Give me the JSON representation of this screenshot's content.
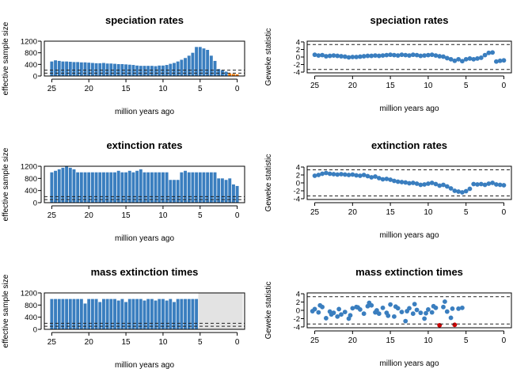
{
  "chart_data": [
    {
      "id": "ess-speciation",
      "type": "bar",
      "title": "speciation rates",
      "xlabel": "million years ago",
      "ylabel": "effective sample size",
      "xlim": [
        26,
        -1
      ],
      "ylim": [
        0,
        1200
      ],
      "xticks": [
        "25",
        "20",
        "15",
        "10",
        "5",
        "0"
      ],
      "yticks": [
        "0",
        "400",
        "800",
        "1200"
      ],
      "hlines": [
        100,
        200
      ],
      "bar_color": "#3a7ebf",
      "highlight_color": "#ff7f0e",
      "shade": null,
      "x": [
        25.0,
        24.5,
        24.0,
        23.5,
        23.0,
        22.5,
        22.0,
        21.5,
        21.0,
        20.5,
        20.0,
        19.5,
        19.0,
        18.5,
        18.0,
        17.5,
        17.0,
        16.5,
        16.0,
        15.5,
        15.0,
        14.5,
        14.0,
        13.5,
        13.0,
        12.5,
        12.0,
        11.5,
        11.0,
        10.5,
        10.0,
        9.5,
        9.0,
        8.5,
        8.0,
        7.5,
        7.0,
        6.5,
        6.0,
        5.5,
        5.0,
        4.5,
        4.0,
        3.5,
        3.0,
        2.5,
        2.0,
        1.5,
        1.0,
        0.5,
        0.0
      ],
      "values": [
        500,
        540,
        520,
        500,
        500,
        490,
        480,
        480,
        470,
        470,
        460,
        450,
        440,
        440,
        450,
        430,
        430,
        420,
        410,
        410,
        400,
        390,
        380,
        360,
        350,
        350,
        350,
        350,
        340,
        360,
        360,
        380,
        420,
        450,
        500,
        560,
        620,
        700,
        800,
        1000,
        1000,
        950,
        900,
        700,
        520,
        240,
        200,
        150,
        90,
        70,
        60
      ],
      "highlight": [
        false,
        false,
        false,
        false,
        false,
        false,
        false,
        false,
        false,
        false,
        false,
        false,
        false,
        false,
        false,
        false,
        false,
        false,
        false,
        false,
        false,
        false,
        false,
        false,
        false,
        false,
        false,
        false,
        false,
        false,
        false,
        false,
        false,
        false,
        false,
        false,
        false,
        false,
        false,
        false,
        false,
        false,
        false,
        false,
        false,
        false,
        false,
        false,
        true,
        true,
        true
      ]
    },
    {
      "id": "geweke-speciation",
      "type": "scatter",
      "title": "speciation rates",
      "xlabel": "million years ago",
      "ylabel": "Geweke statistic",
      "xlim": [
        26,
        -1
      ],
      "ylim": [
        -4.2,
        4.2
      ],
      "xticks": [
        "25",
        "20",
        "15",
        "10",
        "5",
        "0"
      ],
      "yticks": [
        "-4",
        "-2",
        "0",
        "2",
        "4"
      ],
      "hlines": [
        -3.3,
        3.3
      ],
      "point_color": "#3a7ebf",
      "highlight_color": "#cc0000",
      "x": [
        25.0,
        24.5,
        24.0,
        23.5,
        23.0,
        22.5,
        22.0,
        21.5,
        21.0,
        20.5,
        20.0,
        19.5,
        19.0,
        18.5,
        18.0,
        17.5,
        17.0,
        16.5,
        16.0,
        15.5,
        15.0,
        14.5,
        14.0,
        13.5,
        13.0,
        12.5,
        12.0,
        11.5,
        11.0,
        10.5,
        10.0,
        9.5,
        9.0,
        8.5,
        8.0,
        7.5,
        7.0,
        6.5,
        6.0,
        5.5,
        5.0,
        4.5,
        4.0,
        3.5,
        3.0,
        2.5,
        2.0,
        1.5,
        1.0,
        0.5,
        0.0
      ],
      "values": [
        0.6,
        0.4,
        0.5,
        0.2,
        0.3,
        0.4,
        0.3,
        0.2,
        0.1,
        -0.1,
        0.0,
        0.0,
        0.1,
        0.2,
        0.3,
        0.3,
        0.4,
        0.3,
        0.4,
        0.5,
        0.6,
        0.5,
        0.4,
        0.6,
        0.5,
        0.4,
        0.6,
        0.5,
        0.3,
        0.4,
        0.5,
        0.6,
        0.4,
        0.2,
        0.1,
        -0.3,
        -0.6,
        -1.0,
        -0.6,
        -1.1,
        -0.6,
        -0.4,
        -0.6,
        -0.4,
        -0.2,
        0.5,
        1.1,
        1.2,
        -1.2,
        -1.0,
        -0.9
      ],
      "highlight": []
    },
    {
      "id": "ess-extinction",
      "type": "bar",
      "title": "extinction rates",
      "xlabel": "million years ago",
      "ylabel": "effective sample size",
      "xlim": [
        26,
        -1
      ],
      "ylim": [
        0,
        1200
      ],
      "xticks": [
        "25",
        "20",
        "15",
        "10",
        "5",
        "0"
      ],
      "yticks": [
        "0",
        "400",
        "800",
        "1200"
      ],
      "hlines": [
        100,
        200
      ],
      "bar_color": "#3a7ebf",
      "highlight_color": "#ff7f0e",
      "shade": null,
      "x": [
        25.0,
        24.5,
        24.0,
        23.5,
        23.0,
        22.5,
        22.0,
        21.5,
        21.0,
        20.5,
        20.0,
        19.5,
        19.0,
        18.5,
        18.0,
        17.5,
        17.0,
        16.5,
        16.0,
        15.5,
        15.0,
        14.5,
        14.0,
        13.5,
        13.0,
        12.5,
        12.0,
        11.5,
        11.0,
        10.5,
        10.0,
        9.5,
        9.0,
        8.5,
        8.0,
        7.5,
        7.0,
        6.5,
        6.0,
        5.5,
        5.0,
        4.5,
        4.0,
        3.5,
        3.0,
        2.5,
        2.0,
        1.5,
        1.0,
        0.5,
        0.0
      ],
      "values": [
        1000,
        1050,
        1100,
        1150,
        1200,
        1150,
        1100,
        1000,
        1000,
        1000,
        1000,
        1000,
        1000,
        1000,
        1000,
        1000,
        1000,
        1000,
        1050,
        1000,
        1000,
        1050,
        1000,
        1050,
        1100,
        1000,
        1000,
        1000,
        1000,
        1000,
        1000,
        1000,
        750,
        750,
        750,
        1000,
        1050,
        1000,
        1000,
        1000,
        1000,
        1000,
        1000,
        1000,
        1000,
        800,
        800,
        750,
        800,
        600,
        550
      ],
      "highlight": []
    },
    {
      "id": "geweke-extinction",
      "type": "scatter",
      "title": "extinction rates",
      "xlabel": "million years ago",
      "ylabel": "Geweke statistic",
      "xlim": [
        26,
        -1
      ],
      "ylim": [
        -4.2,
        4.2
      ],
      "xticks": [
        "25",
        "20",
        "15",
        "10",
        "5",
        "0"
      ],
      "yticks": [
        "-4",
        "-2",
        "0",
        "2",
        "4"
      ],
      "hlines": [
        -3.3,
        3.3
      ],
      "point_color": "#3a7ebf",
      "highlight_color": "#cc0000",
      "x": [
        25.0,
        24.5,
        24.0,
        23.5,
        23.0,
        22.5,
        22.0,
        21.5,
        21.0,
        20.5,
        20.0,
        19.5,
        19.0,
        18.5,
        18.0,
        17.5,
        17.0,
        16.5,
        16.0,
        15.5,
        15.0,
        14.5,
        14.0,
        13.5,
        13.0,
        12.5,
        12.0,
        11.5,
        11.0,
        10.5,
        10.0,
        9.5,
        9.0,
        8.5,
        8.0,
        7.5,
        7.0,
        6.5,
        6.0,
        5.5,
        5.0,
        4.5,
        4.0,
        3.5,
        3.0,
        2.5,
        2.0,
        1.5,
        1.0,
        0.5,
        0.0
      ],
      "values": [
        1.8,
        2.0,
        2.3,
        2.5,
        2.3,
        2.2,
        2.1,
        2.2,
        2.1,
        2.0,
        2.1,
        1.9,
        1.8,
        2.0,
        1.7,
        1.4,
        1.6,
        1.2,
        0.9,
        1.0,
        0.8,
        0.5,
        0.3,
        0.2,
        0.1,
        -0.1,
        0.0,
        -0.2,
        -0.5,
        -0.4,
        -0.2,
        0.0,
        -0.3,
        -0.7,
        -0.5,
        -0.9,
        -1.4,
        -2.0,
        -2.2,
        -2.4,
        -2.1,
        -1.5,
        -0.3,
        -0.4,
        -0.3,
        -0.5,
        -0.2,
        0.0,
        -0.4,
        -0.5,
        -0.6
      ],
      "highlight": []
    },
    {
      "id": "ess-mass-extinction",
      "type": "bar",
      "title": "mass extinction times",
      "xlabel": "million years ago",
      "ylabel": "effective sample size",
      "xlim": [
        26,
        -1
      ],
      "ylim": [
        0,
        1200
      ],
      "xticks": [
        "25",
        "20",
        "15",
        "10",
        "5",
        "0"
      ],
      "yticks": [
        "0",
        "400",
        "800",
        "1200"
      ],
      "hlines": [
        100,
        200
      ],
      "bar_color": "#3a7ebf",
      "highlight_color": "#ff7f0e",
      "shade": {
        "from": 5.25,
        "to": -0.75,
        "color": "#e3e3e3"
      },
      "x": [
        25.0,
        24.5,
        24.0,
        23.5,
        23.0,
        22.5,
        22.0,
        21.5,
        21.0,
        20.5,
        20.0,
        19.5,
        19.0,
        18.5,
        18.0,
        17.5,
        17.0,
        16.5,
        16.0,
        15.5,
        15.0,
        14.5,
        14.0,
        13.5,
        13.0,
        12.5,
        12.0,
        11.5,
        11.0,
        10.5,
        10.0,
        9.5,
        9.0,
        8.5,
        8.0,
        7.5,
        7.0,
        6.5,
        6.0,
        5.5
      ],
      "values": [
        1000,
        1000,
        1000,
        1000,
        1000,
        1000,
        1000,
        1000,
        1000,
        850,
        1000,
        1000,
        1000,
        900,
        1000,
        1000,
        1000,
        1000,
        950,
        1000,
        900,
        1000,
        1000,
        1000,
        1000,
        950,
        1000,
        1000,
        950,
        1000,
        1000,
        950,
        1000,
        900,
        1000,
        1000,
        1000,
        1000,
        1000,
        1000
      ],
      "highlight": []
    },
    {
      "id": "geweke-mass-extinction",
      "type": "scatter",
      "title": "mass extinction times",
      "xlabel": "million years ago",
      "ylabel": "Geweke statistic",
      "xlim": [
        26,
        -1
      ],
      "ylim": [
        -4.2,
        4.2
      ],
      "xticks": [
        "25",
        "20",
        "15",
        "10",
        "5",
        "0"
      ],
      "yticks": [
        "-4",
        "-2",
        "0",
        "2",
        "4"
      ],
      "hlines": [
        -3.3,
        3.3
      ],
      "point_color": "#3a7ebf",
      "highlight_color": "#cc0000",
      "x": [
        25.0,
        24.5,
        24.0,
        23.5,
        23.0,
        22.5,
        22.0,
        21.5,
        21.0,
        20.5,
        20.0,
        19.5,
        19.0,
        18.5,
        18.0,
        17.5,
        17.0,
        16.5,
        16.0,
        15.5,
        15.0,
        14.5,
        14.0,
        13.5,
        13.0,
        12.5,
        12.0,
        11.5,
        11.0,
        10.5,
        10.0,
        9.5,
        9.0,
        8.5,
        8.0,
        7.5,
        7.0,
        6.5,
        6.0,
        5.5,
        25.3,
        24.3,
        22.8,
        21.8,
        20.3,
        19.3,
        17.8,
        16.8,
        15.3,
        14.3,
        12.8,
        11.8,
        10.3,
        9.3,
        7.8,
        6.8
      ],
      "values": [
        0.3,
        -0.5,
        0.8,
        -1.9,
        -0.3,
        -0.6,
        -1.5,
        -1.0,
        -0.4,
        -2.0,
        0.5,
        0.8,
        0.2,
        -0.8,
        1.0,
        1.2,
        -0.5,
        -0.8,
        0.6,
        -0.6,
        1.4,
        -1.5,
        0.5,
        -0.4,
        -2.6,
        0.5,
        -0.8,
        0.1,
        -0.6,
        -2.0,
        0.2,
        -0.5,
        0.6,
        -3.6,
        0.8,
        -0.3,
        -1.8,
        -3.5,
        0.4,
        0.6,
        -0.2,
        1.2,
        -1.0,
        0.3,
        -1.2,
        0.7,
        1.8,
        0.0,
        -1.3,
        0.9,
        -0.2,
        1.5,
        -0.7,
        1.0,
        2.1,
        0.4
      ],
      "highlight": [
        false,
        false,
        false,
        false,
        false,
        false,
        false,
        false,
        false,
        false,
        false,
        false,
        false,
        false,
        false,
        false,
        false,
        false,
        false,
        false,
        false,
        false,
        false,
        false,
        false,
        false,
        false,
        false,
        false,
        false,
        false,
        false,
        false,
        true,
        false,
        false,
        false,
        true,
        false,
        false,
        false,
        false,
        false,
        false,
        false,
        false,
        false,
        false,
        false,
        false,
        false,
        false,
        false,
        false,
        false,
        false
      ]
    }
  ]
}
